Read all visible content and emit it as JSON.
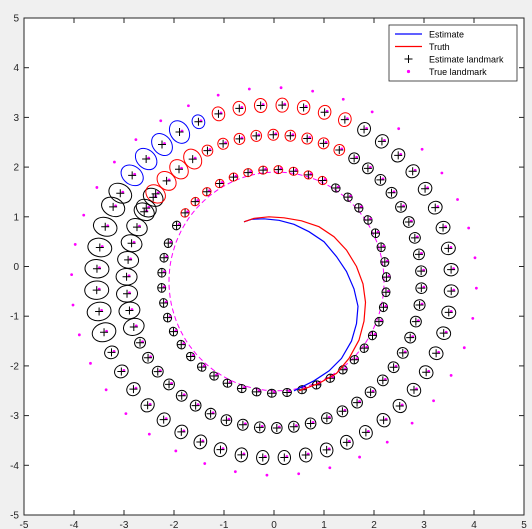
{
  "chart_data": {
    "type": "scatter",
    "title": "",
    "xlabel": "",
    "ylabel": "",
    "xlim": [
      -5,
      5
    ],
    "ylim": [
      -5,
      5
    ],
    "xticks": [
      "-5",
      "-4",
      "-3",
      "-2",
      "-1",
      "0",
      "1",
      "2",
      "3",
      "4",
      "5"
    ],
    "yticks": [
      "-5",
      "-4",
      "-3",
      "-2",
      "-1",
      "0",
      "1",
      "2",
      "3",
      "4",
      "5"
    ],
    "grid": false,
    "legend_position": "top-right",
    "colors": {
      "estimate": "#0000ff",
      "truth": "#ff0000",
      "landmark_estimate": "#000000",
      "landmark_true": "#ff00ff",
      "ellipse_black": "#000000",
      "ellipse_red": "#ff0000",
      "ellipse_blue": "#0000ff",
      "trajectory_loop": "#ff00ff"
    },
    "legend": [
      {
        "label": "Estimate",
        "kind": "line",
        "color": "#0000ff"
      },
      {
        "label": "Truth",
        "kind": "line",
        "color": "#ff0000"
      },
      {
        "label": "Estimate landmark",
        "kind": "plus",
        "color": "#000000"
      },
      {
        "label": "True landmark",
        "kind": "dot",
        "color": "#ff00ff"
      }
    ],
    "series": [
      {
        "name": "Estimate",
        "kind": "line",
        "x": [
          -0.6,
          -0.45,
          -0.2,
          0.1,
          0.4,
          0.7,
          1.0,
          1.25,
          1.45,
          1.6,
          1.68,
          1.65,
          1.55,
          1.35,
          1.1,
          0.8,
          0.4
        ],
        "y": [
          0.9,
          0.95,
          0.96,
          0.93,
          0.85,
          0.7,
          0.5,
          0.2,
          -0.1,
          -0.45,
          -0.8,
          -1.15,
          -1.5,
          -1.85,
          -2.1,
          -2.3,
          -2.5
        ]
      },
      {
        "name": "Truth",
        "kind": "line",
        "x": [
          -0.6,
          -0.4,
          -0.1,
          0.2,
          0.55,
          0.9,
          1.2,
          1.45,
          1.65,
          1.78,
          1.83,
          1.8,
          1.7,
          1.5,
          1.25,
          0.9,
          0.5
        ],
        "y": [
          0.9,
          0.97,
          1.0,
          0.98,
          0.92,
          0.8,
          0.6,
          0.33,
          0.0,
          -0.35,
          -0.72,
          -1.1,
          -1.48,
          -1.85,
          -2.15,
          -2.35,
          -2.5
        ]
      }
    ]
  }
}
